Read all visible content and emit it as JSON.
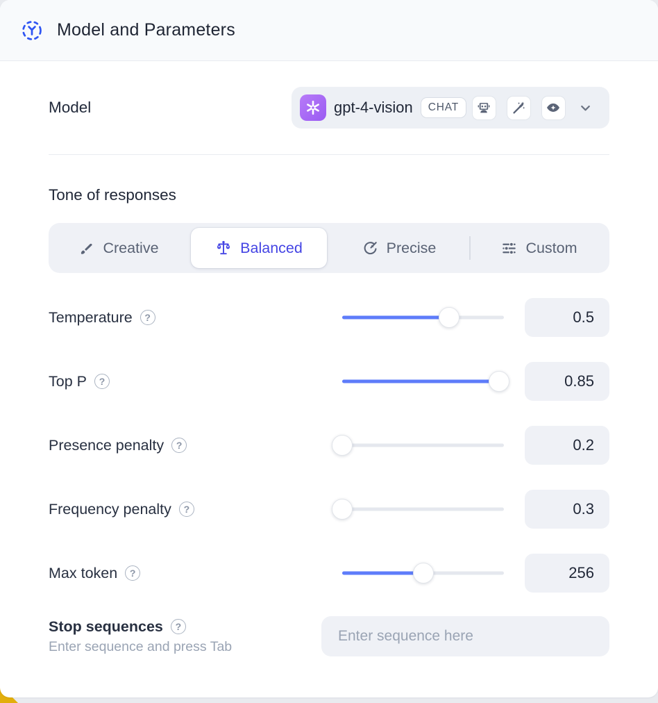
{
  "header": {
    "title": "Model and Parameters"
  },
  "model_row": {
    "label": "Model",
    "selected_model": "gpt-4-vision",
    "type_badge": "CHAT",
    "capability_icons": [
      "robot",
      "magic-wand",
      "vision-eye"
    ]
  },
  "tone": {
    "heading": "Tone of responses",
    "options": [
      {
        "label": "Creative",
        "icon": "paintbrush",
        "selected": false
      },
      {
        "label": "Balanced",
        "icon": "balance-scale",
        "selected": true
      },
      {
        "label": "Precise",
        "icon": "target",
        "selected": false
      },
      {
        "label": "Custom",
        "icon": "sliders",
        "selected": false
      }
    ]
  },
  "parameters": [
    {
      "label": "Temperature",
      "value": "0.5",
      "slider_position": 0.66
    },
    {
      "label": "Top P",
      "value": "0.85",
      "slider_position": 0.97
    },
    {
      "label": "Presence penalty",
      "value": "0.2",
      "slider_position": 0
    },
    {
      "label": "Frequency penalty",
      "value": "0.3",
      "slider_position": 0
    },
    {
      "label": "Max token",
      "value": "256",
      "slider_position": 0.5
    }
  ],
  "stop_sequences": {
    "label": "Stop sequences",
    "hint": "Enter sequence and press Tab",
    "placeholder": "Enter sequence here"
  },
  "ui": {
    "help_glyph": "?"
  },
  "colors": {
    "accent_indigo": "#4444e4",
    "slider_blue": "#5e7cfa",
    "openai_purple": "#9a5bf2",
    "yellow_corner": "#e2ae0c"
  }
}
